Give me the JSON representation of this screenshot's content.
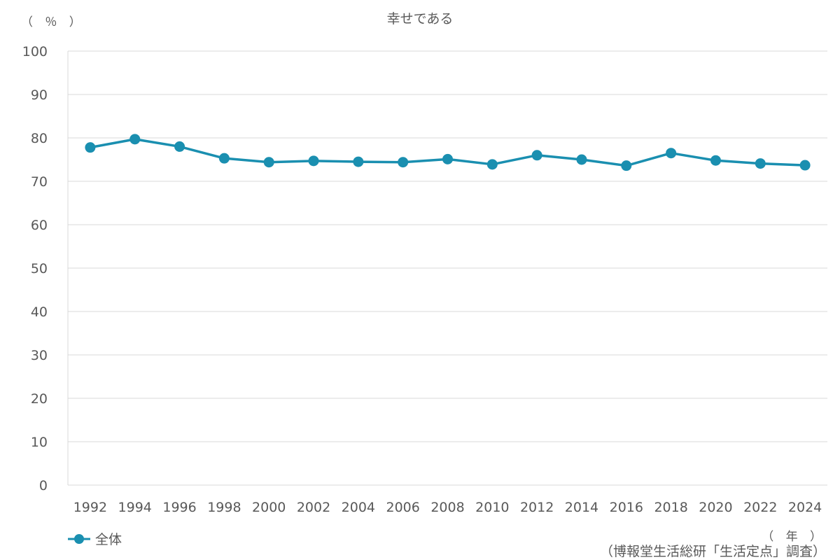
{
  "chart_data": {
    "type": "line",
    "title": "幸せである",
    "ylabel": "（ ％ ）",
    "xlabel": "（ 年 ）",
    "ylim": [
      0,
      100
    ],
    "yticks": [
      0,
      10,
      20,
      30,
      40,
      50,
      60,
      70,
      80,
      90,
      100
    ],
    "categories": [
      "1992",
      "1994",
      "1996",
      "1998",
      "2000",
      "2002",
      "2004",
      "2006",
      "2008",
      "2010",
      "2012",
      "2014",
      "2016",
      "2018",
      "2020",
      "2022",
      "2024"
    ],
    "series": [
      {
        "name": "全体",
        "color": "#1a8fb0",
        "values": [
          77.8,
          79.7,
          78.0,
          75.3,
          74.4,
          74.7,
          74.5,
          74.4,
          75.1,
          73.9,
          76.0,
          75.0,
          73.6,
          76.5,
          74.8,
          74.1,
          73.7
        ]
      }
    ],
    "grid": true,
    "legend": "bottom-left",
    "source": "（博報堂生活総研「生活定点」調査）"
  }
}
